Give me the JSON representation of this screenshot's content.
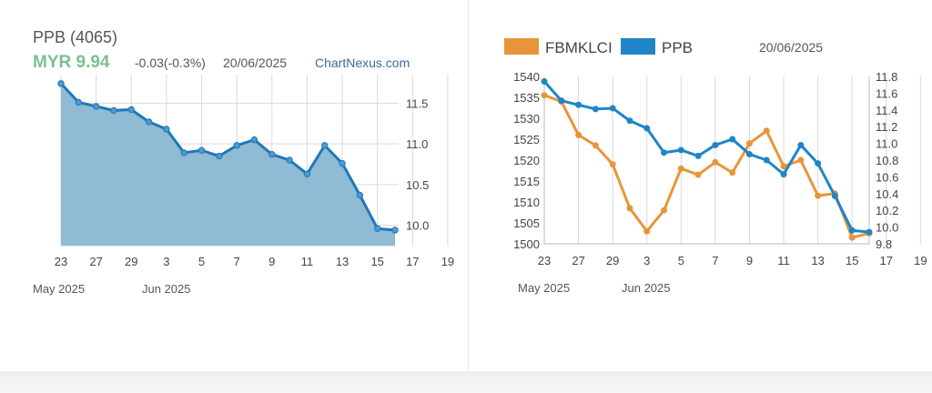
{
  "header": {
    "stock_title": "PPB (4065)",
    "price": "MYR 9.94",
    "change": "-0.03(-0.3%)",
    "date": "20/06/2025",
    "source_link": "ChartNexus.com",
    "price_color": "#7cbf8e"
  },
  "right_header": {
    "date": "20/06/2025"
  },
  "chart_data": [
    {
      "type": "area",
      "x_tick_labels": [
        "23",
        "27",
        "29",
        "3",
        "5",
        "7",
        "9",
        "11",
        "13",
        "15",
        "17",
        "19"
      ],
      "month_labels": [
        "May 2025",
        "Jun 2025"
      ],
      "y_ticks": [
        10.0,
        10.5,
        11.0,
        11.5
      ],
      "ylim": [
        9.75,
        11.85
      ],
      "series": [
        {
          "values": [
            11.74,
            11.51,
            11.46,
            11.41,
            11.42,
            11.27,
            11.18,
            10.89,
            10.92,
            10.85,
            10.98,
            11.05,
            10.87,
            10.8,
            10.63,
            10.98,
            10.76,
            10.37,
            9.96,
            9.94
          ]
        }
      ],
      "colors": {
        "line": "#1f77b8",
        "fill": "#8fbbd5"
      },
      "grid": true
    },
    {
      "type": "line",
      "x_tick_labels": [
        "23",
        "27",
        "29",
        "3",
        "5",
        "7",
        "9",
        "11",
        "13",
        "15",
        "17",
        "19"
      ],
      "month_labels": [
        "May 2025",
        "Jun 2025"
      ],
      "y_left_ticks": [
        1500,
        1505,
        1510,
        1515,
        1520,
        1525,
        1530,
        1535,
        1540
      ],
      "y_left_lim": [
        1500,
        1540
      ],
      "y_right_ticks": [
        9.8,
        10.0,
        10.2,
        10.4,
        10.6,
        10.8,
        11.0,
        11.2,
        11.4,
        11.6,
        11.8
      ],
      "y_right_lim": [
        9.8,
        11.8
      ],
      "legend": {
        "placement": "top-left",
        "entries": [
          "FBMKLCI",
          "PPB"
        ]
      },
      "series": [
        {
          "name": "FBMKLCI",
          "axis": "left",
          "color": "#e8953a",
          "values": [
            1535.5,
            1534.0,
            1526.0,
            1523.5,
            1519.0,
            1508.5,
            1503.0,
            1508.0,
            1518.0,
            1516.5,
            1519.5,
            1517.0,
            1524.0,
            1527.0,
            1518.5,
            1520.0,
            1511.5,
            1512.0,
            1501.5,
            1502.5
          ]
        },
        {
          "name": "PPB",
          "axis": "right",
          "color": "#1f85c6",
          "values": [
            11.74,
            11.51,
            11.46,
            11.41,
            11.42,
            11.27,
            11.18,
            10.89,
            10.92,
            10.85,
            10.98,
            11.05,
            10.87,
            10.8,
            10.63,
            10.98,
            10.76,
            10.37,
            9.96,
            9.94
          ]
        }
      ],
      "grid": true
    }
  ]
}
